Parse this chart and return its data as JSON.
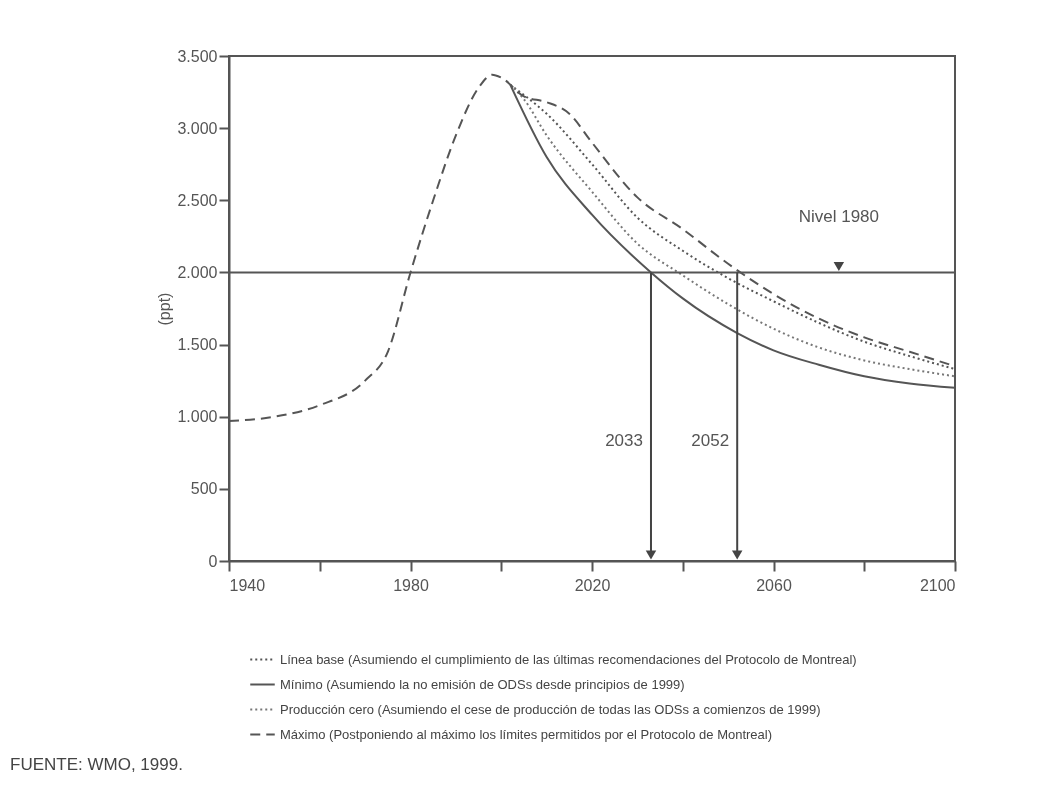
{
  "chart_data": {
    "type": "line",
    "ylabel": "(ppt)",
    "xlim": [
      1940,
      2100
    ],
    "xticks": [
      1940,
      {
        "value": 1960,
        "label": null
      },
      1980,
      {
        "value": 2000,
        "label": null
      },
      2020,
      {
        "value": 2040,
        "label": null
      },
      2060,
      {
        "value": 2080,
        "label": null
      },
      2100
    ],
    "ylim": [
      0,
      3500
    ],
    "yticks": [
      {
        "value": 0,
        "label": "0"
      },
      {
        "value": 500,
        "label": "500"
      },
      {
        "value": 1000,
        "label": "1.000"
      },
      {
        "value": 1500,
        "label": "1.500"
      },
      {
        "value": 2000,
        "label": "2.000"
      },
      {
        "value": 2500,
        "label": "2.500"
      },
      {
        "value": 3000,
        "label": "3.000"
      },
      {
        "value": 3500,
        "label": "3.500"
      }
    ],
    "series": [
      {
        "name": "Línea base (Asumiendo el cumplimiento de las últimas recomendaciones del Protocolo de Montreal)",
        "color": "#555555",
        "line_style": "dotted",
        "x": [
          2002,
          2005,
          2010,
          2020,
          2030,
          2040,
          2050,
          2060,
          2070,
          2080,
          2090,
          2100
        ],
        "values": [
          3300,
          3230,
          3100,
          2750,
          2380,
          2150,
          1960,
          1800,
          1650,
          1520,
          1420,
          1330
        ]
      },
      {
        "name": "Mínimo (Asumiendo la no emisión de ODSs desde principios de 1999)",
        "color": "#555555",
        "line_style": "solid",
        "x": [
          2002,
          2010,
          2020,
          2033,
          2040,
          2052,
          2060,
          2070,
          2080,
          2090,
          2100
        ],
        "values": [
          3300,
          2800,
          2400,
          2000,
          1820,
          1580,
          1460,
          1360,
          1280,
          1230,
          1200
        ]
      },
      {
        "name": "Producción cero (Asumiendo el cese de producción de todas las ODSs a comienzos de 1999)",
        "color": "#777777",
        "line_style": "dotted",
        "x": [
          2002,
          2005,
          2010,
          2020,
          2030,
          2040,
          2050,
          2060,
          2070,
          2080,
          2090,
          2100
        ],
        "values": [
          3300,
          3200,
          2950,
          2560,
          2200,
          1980,
          1780,
          1610,
          1480,
          1390,
          1330,
          1280
        ]
      },
      {
        "name": "Máximo (Postponiendo al máximo los límites permitidos por el Protocolo de Montreal)",
        "color": "#555555",
        "line_style": "dashed",
        "x": [
          1940,
          1950,
          1960,
          1970,
          1975,
          1980,
          1985,
          1990,
          1995,
          1998,
          2000,
          2005,
          2010,
          2015,
          2020,
          2030,
          2040,
          2050,
          2060,
          2070,
          2080,
          2090,
          2100
        ],
        "values": [
          970,
          1000,
          1080,
          1250,
          1450,
          2000,
          2500,
          2950,
          3280,
          3370,
          3350,
          3220,
          3180,
          3100,
          2900,
          2520,
          2300,
          2060,
          1850,
          1680,
          1550,
          1450,
          1350
        ]
      }
    ],
    "ref_lines": [
      {
        "axis": "y",
        "value": 2000,
        "label": "Nivel 1980"
      },
      {
        "axis": "x",
        "value": 2033,
        "label": "2033"
      },
      {
        "axis": "x",
        "value": 2052,
        "label": "2052"
      }
    ],
    "annotations": [
      "FUENTE: WMO, 1999."
    ],
    "legend": "bottom"
  }
}
